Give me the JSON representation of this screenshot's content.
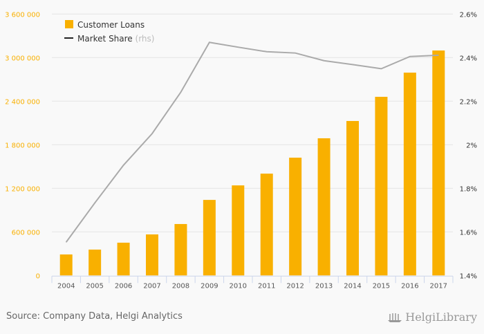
{
  "chart_data": {
    "type": "bar+line",
    "categories": [
      "2004",
      "2005",
      "2006",
      "2007",
      "2008",
      "2009",
      "2010",
      "2011",
      "2012",
      "2013",
      "2014",
      "2015",
      "2016",
      "2017"
    ],
    "series": [
      {
        "name": "Customer Loans",
        "type": "bar",
        "axis": "left",
        "color": "#f9b000",
        "values": [
          289000,
          356000,
          451000,
          565000,
          708000,
          1040000,
          1240000,
          1402000,
          1622000,
          1889000,
          2127000,
          2460000,
          2793000,
          3098000
        ]
      },
      {
        "name": "Market Share",
        "name_suffix": "(rhs)",
        "type": "line",
        "axis": "right",
        "color": "#aaaaaa",
        "values": [
          1.553,
          1.733,
          1.906,
          2.051,
          2.241,
          2.47,
          2.448,
          2.427,
          2.421,
          2.386,
          2.368,
          2.349,
          2.405,
          2.411
        ]
      }
    ],
    "left_axis": {
      "min": 0,
      "max": 3600000,
      "ticks": [
        "0",
        "600 000",
        "1 200 000",
        "1 800 000",
        "2 400 000",
        "3 000 000",
        "3 600 000"
      ]
    },
    "right_axis": {
      "min": 1.4,
      "max": 2.6,
      "ticks": [
        "1.4%",
        "1.6%",
        "1.8%",
        "2%",
        "2.2%",
        "2.4%",
        "2.6%"
      ]
    },
    "grid": true,
    "legend": "top-left"
  },
  "footer": {
    "source": "Source: Company Data, Helgi Analytics",
    "logo": "HelgiLibrary"
  }
}
